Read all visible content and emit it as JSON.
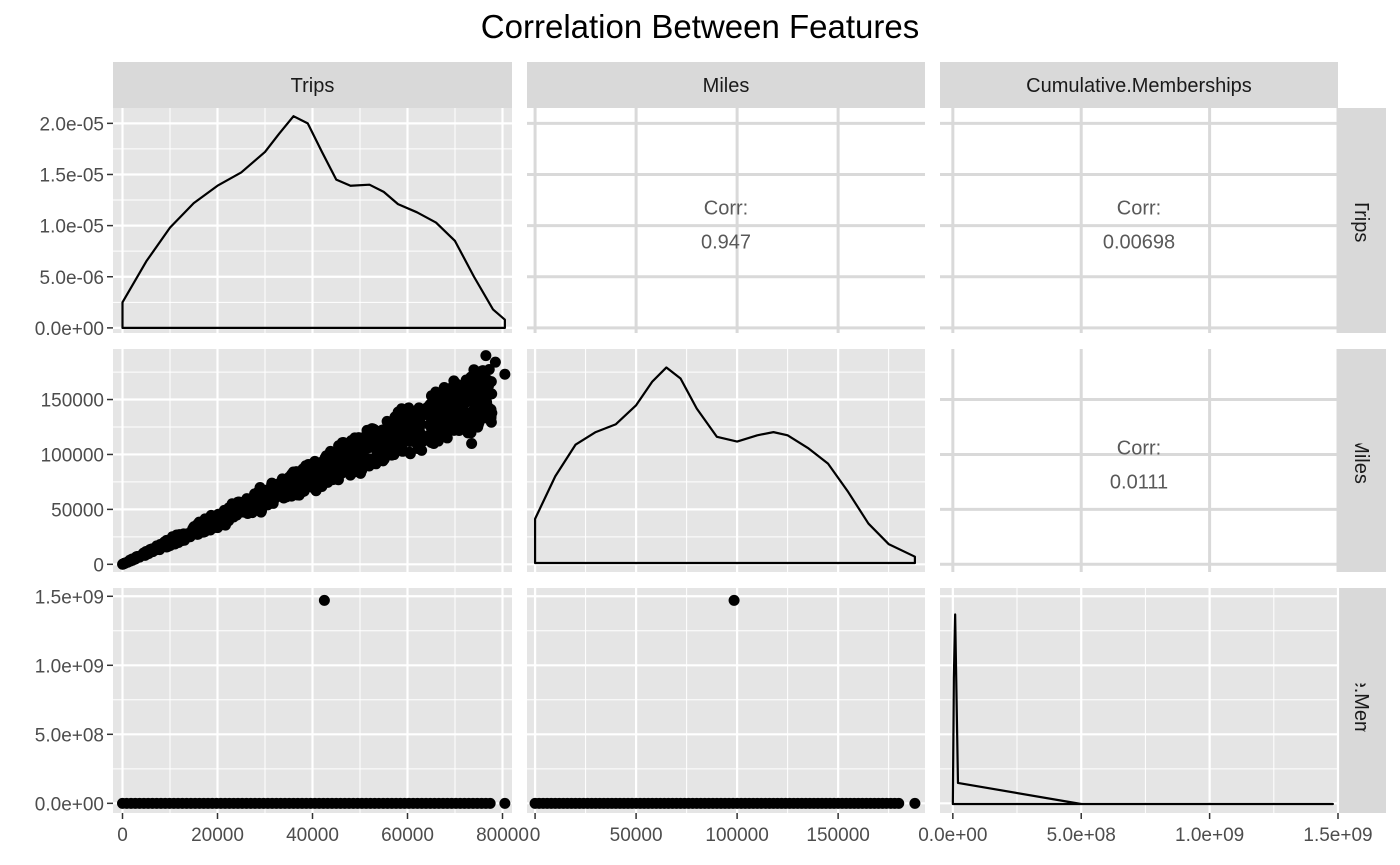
{
  "title": "Correlation Between Features",
  "colors": {
    "panel_bg": "#e5e5e5",
    "strip_bg": "#d9d9d9",
    "upper_bg": "#ffffff",
    "grid_major": "#ffffff",
    "upper_grid": "#d9d9d9",
    "ink": "#000000",
    "corr_text": "#595959",
    "axis_text": "#4d4d4d"
  },
  "chart_data": {
    "type": "scatter-matrix",
    "title": "Correlation Between Features",
    "variables": [
      "Trips",
      "Miles",
      "Cumulative.Memberships"
    ],
    "column_strips": [
      "Trips",
      "Miles",
      "Cumulative.Memberships"
    ],
    "row_strips": [
      "Trips",
      "Miles",
      "Cumulative.Memberships"
    ],
    "x_axes": [
      {
        "variable": "Trips",
        "range": [
          -2000,
          82000
        ],
        "ticks": [
          0,
          20000,
          40000,
          60000,
          80000
        ],
        "tick_labels": [
          "0",
          "20000",
          "40000",
          "60000",
          "80000"
        ]
      },
      {
        "variable": "Miles",
        "range": [
          -4000,
          193000
        ],
        "ticks": [
          0,
          50000,
          100000,
          150000
        ],
        "tick_labels": [
          "0",
          "50000",
          "100000",
          "150000"
        ]
      },
      {
        "variable": "Cumulative.Memberships",
        "range": [
          -50000000,
          1500000000
        ],
        "ticks": [
          0,
          500000000,
          1000000000,
          1500000000
        ],
        "tick_labels": [
          "0.0e+00",
          "5.0e+08",
          "1.0e+09",
          "1.5e+09"
        ]
      }
    ],
    "y_axes": [
      {
        "variable": "Trips (density)",
        "range": [
          -5e-07,
          2.15e-05
        ],
        "ticks": [
          0,
          5e-06,
          1e-05,
          1.5e-05,
          2e-05
        ],
        "tick_labels": [
          "0.0e+00",
          "5.0e-06",
          "1.0e-05",
          "1.5e-05",
          "2.0e-05"
        ]
      },
      {
        "variable": "Miles",
        "range": [
          -7000,
          196000
        ],
        "ticks": [
          0,
          50000,
          100000,
          150000
        ],
        "tick_labels": [
          "0",
          "50000",
          "100000",
          "150000"
        ]
      },
      {
        "variable": "Cumulative.Memberships",
        "range": [
          -70000000,
          1560000000
        ],
        "ticks": [
          0,
          500000000,
          1000000000,
          1500000000
        ],
        "tick_labels": [
          "0.0e+00",
          "5.0e+08",
          "1.0e+09",
          "1.5e+09"
        ]
      }
    ],
    "correlations": [
      {
        "row": 0,
        "col": 1,
        "label": "Corr:",
        "value": "0.947"
      },
      {
        "row": 0,
        "col": 2,
        "label": "Corr:",
        "value": "0.00698"
      },
      {
        "row": 1,
        "col": 2,
        "label": "Corr:",
        "value": "0.0111"
      }
    ],
    "densities": {
      "Trips": {
        "x": [
          0,
          5000,
          10000,
          15000,
          20000,
          25000,
          30000,
          33000,
          36000,
          39000,
          42000,
          45000,
          48000,
          52000,
          55000,
          58000,
          62000,
          66000,
          70000,
          74000,
          78000,
          80500
        ],
        "y": [
          2.5e-06,
          6.5e-06,
          9.8e-06,
          1.22e-05,
          1.39e-05,
          1.52e-05,
          1.72e-05,
          1.9e-05,
          2.07e-05,
          2e-05,
          1.72e-05,
          1.45e-05,
          1.39e-05,
          1.4e-05,
          1.33e-05,
          1.21e-05,
          1.13e-05,
          1.03e-05,
          8.5e-06,
          5e-06,
          1.8e-06,
          8e-07
        ]
      },
      "Miles": {
        "x": [
          0,
          10000,
          20000,
          30000,
          40000,
          50000,
          58000,
          65000,
          72000,
          80000,
          90000,
          100000,
          110000,
          118000,
          125000,
          135000,
          145000,
          155000,
          165000,
          175000,
          188000
        ],
        "y": [
          2.8e-06,
          5.5e-06,
          7.5e-06,
          8.3e-06,
          8.8e-06,
          1e-05,
          1.15e-05,
          1.24e-05,
          1.17e-05,
          9.8e-06,
          8e-06,
          7.7e-06,
          8.1e-06,
          8.3e-06,
          8.1e-06,
          7.3e-06,
          6.3e-06,
          4.5e-06,
          2.5e-06,
          1.2e-06,
          4e-07
        ]
      },
      "Cumulative.Memberships": {
        "x": [
          0,
          4000000,
          9000000,
          20000000,
          500000000,
          1000000000,
          1480000000
        ],
        "y": [
          0.0,
          6e-07,
          9e-07,
          1e-07,
          0.0,
          0.0,
          0.0
        ],
        "ylim": [
          0,
          9.5e-07
        ]
      }
    },
    "scatter_trips_miles": {
      "slope_main": 2.1,
      "slope_low": 1.7,
      "points_note": "dense linear cloud from (0,0) to about (80000,190000)",
      "outliers": [
        [
          76500,
          190000
        ],
        [
          78500,
          184000
        ],
        [
          80500,
          173000
        ],
        [
          75000,
          171000
        ],
        [
          77000,
          143000
        ],
        [
          74500,
          126000
        ],
        [
          73500,
          110000
        ],
        [
          40000,
          70000
        ],
        [
          43000,
          76000
        ]
      ]
    },
    "memberships_outlier": {
      "trips": 42500,
      "miles": 98500,
      "memberships": 1470000000
    },
    "grid": true
  }
}
